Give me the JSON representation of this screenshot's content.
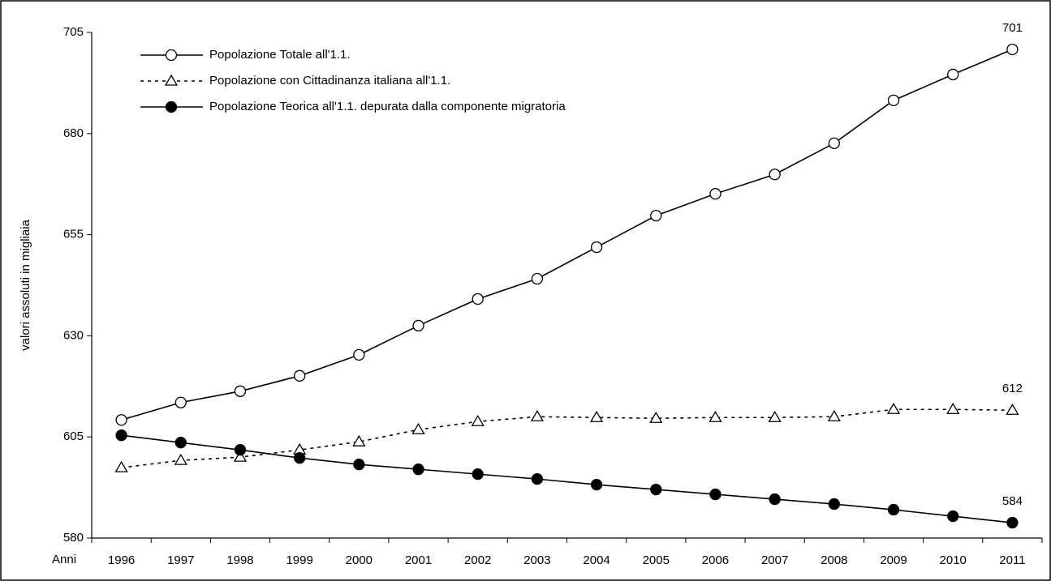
{
  "chart_data": {
    "type": "line",
    "y_label": "valori assoluti in migliaia",
    "x_label": "Anni",
    "categories": [
      "1996",
      "1997",
      "1998",
      "1999",
      "2000",
      "2001",
      "2002",
      "2003",
      "2004",
      "2005",
      "2006",
      "2007",
      "2008",
      "2009",
      "2010",
      "2011"
    ],
    "ylim": [
      580,
      705
    ],
    "yticks": [
      580,
      605,
      630,
      655,
      680,
      705
    ],
    "series": [
      {
        "name": "Popolazione Totale all'1.1.",
        "color": "#000000",
        "dash": "solid",
        "marker": "circle-open",
        "values": [
          609.2,
          613.5,
          616.3,
          620.1,
          625.3,
          632.5,
          639.1,
          644.1,
          651.9,
          659.7,
          665.1,
          669.9,
          677.6,
          688.2,
          694.6,
          700.8
        ],
        "value_labels": [
          null,
          null,
          null,
          null,
          null,
          null,
          null,
          null,
          null,
          null,
          null,
          null,
          null,
          null,
          null,
          "701"
        ]
      },
      {
        "name": "Popolazione con Cittadinanza italiana all'1.1.",
        "color": "#000000",
        "dash": "dashed",
        "marker": "triangle-open",
        "values": [
          597.4,
          599.2,
          600.0,
          601.8,
          603.8,
          606.8,
          608.8,
          610.0,
          609.8,
          609.6,
          609.8,
          609.8,
          610.0,
          611.8,
          611.8,
          611.6
        ],
        "value_labels": [
          null,
          null,
          null,
          null,
          null,
          null,
          null,
          null,
          null,
          null,
          null,
          null,
          null,
          null,
          null,
          "612"
        ]
      },
      {
        "name": "Popolazione Teorica all'1.1. depurata dalla componente migratoria",
        "color": "#000000",
        "dash": "solid",
        "marker": "circle-filled",
        "values": [
          605.4,
          603.6,
          601.8,
          599.8,
          598.2,
          597.0,
          595.8,
          594.6,
          593.2,
          592.0,
          590.8,
          589.6,
          588.4,
          587.0,
          585.4,
          583.8
        ],
        "value_labels": [
          null,
          null,
          null,
          null,
          null,
          null,
          null,
          null,
          null,
          null,
          null,
          null,
          null,
          null,
          null,
          "584"
        ]
      }
    ],
    "legend": "top-left",
    "grid": false
  }
}
